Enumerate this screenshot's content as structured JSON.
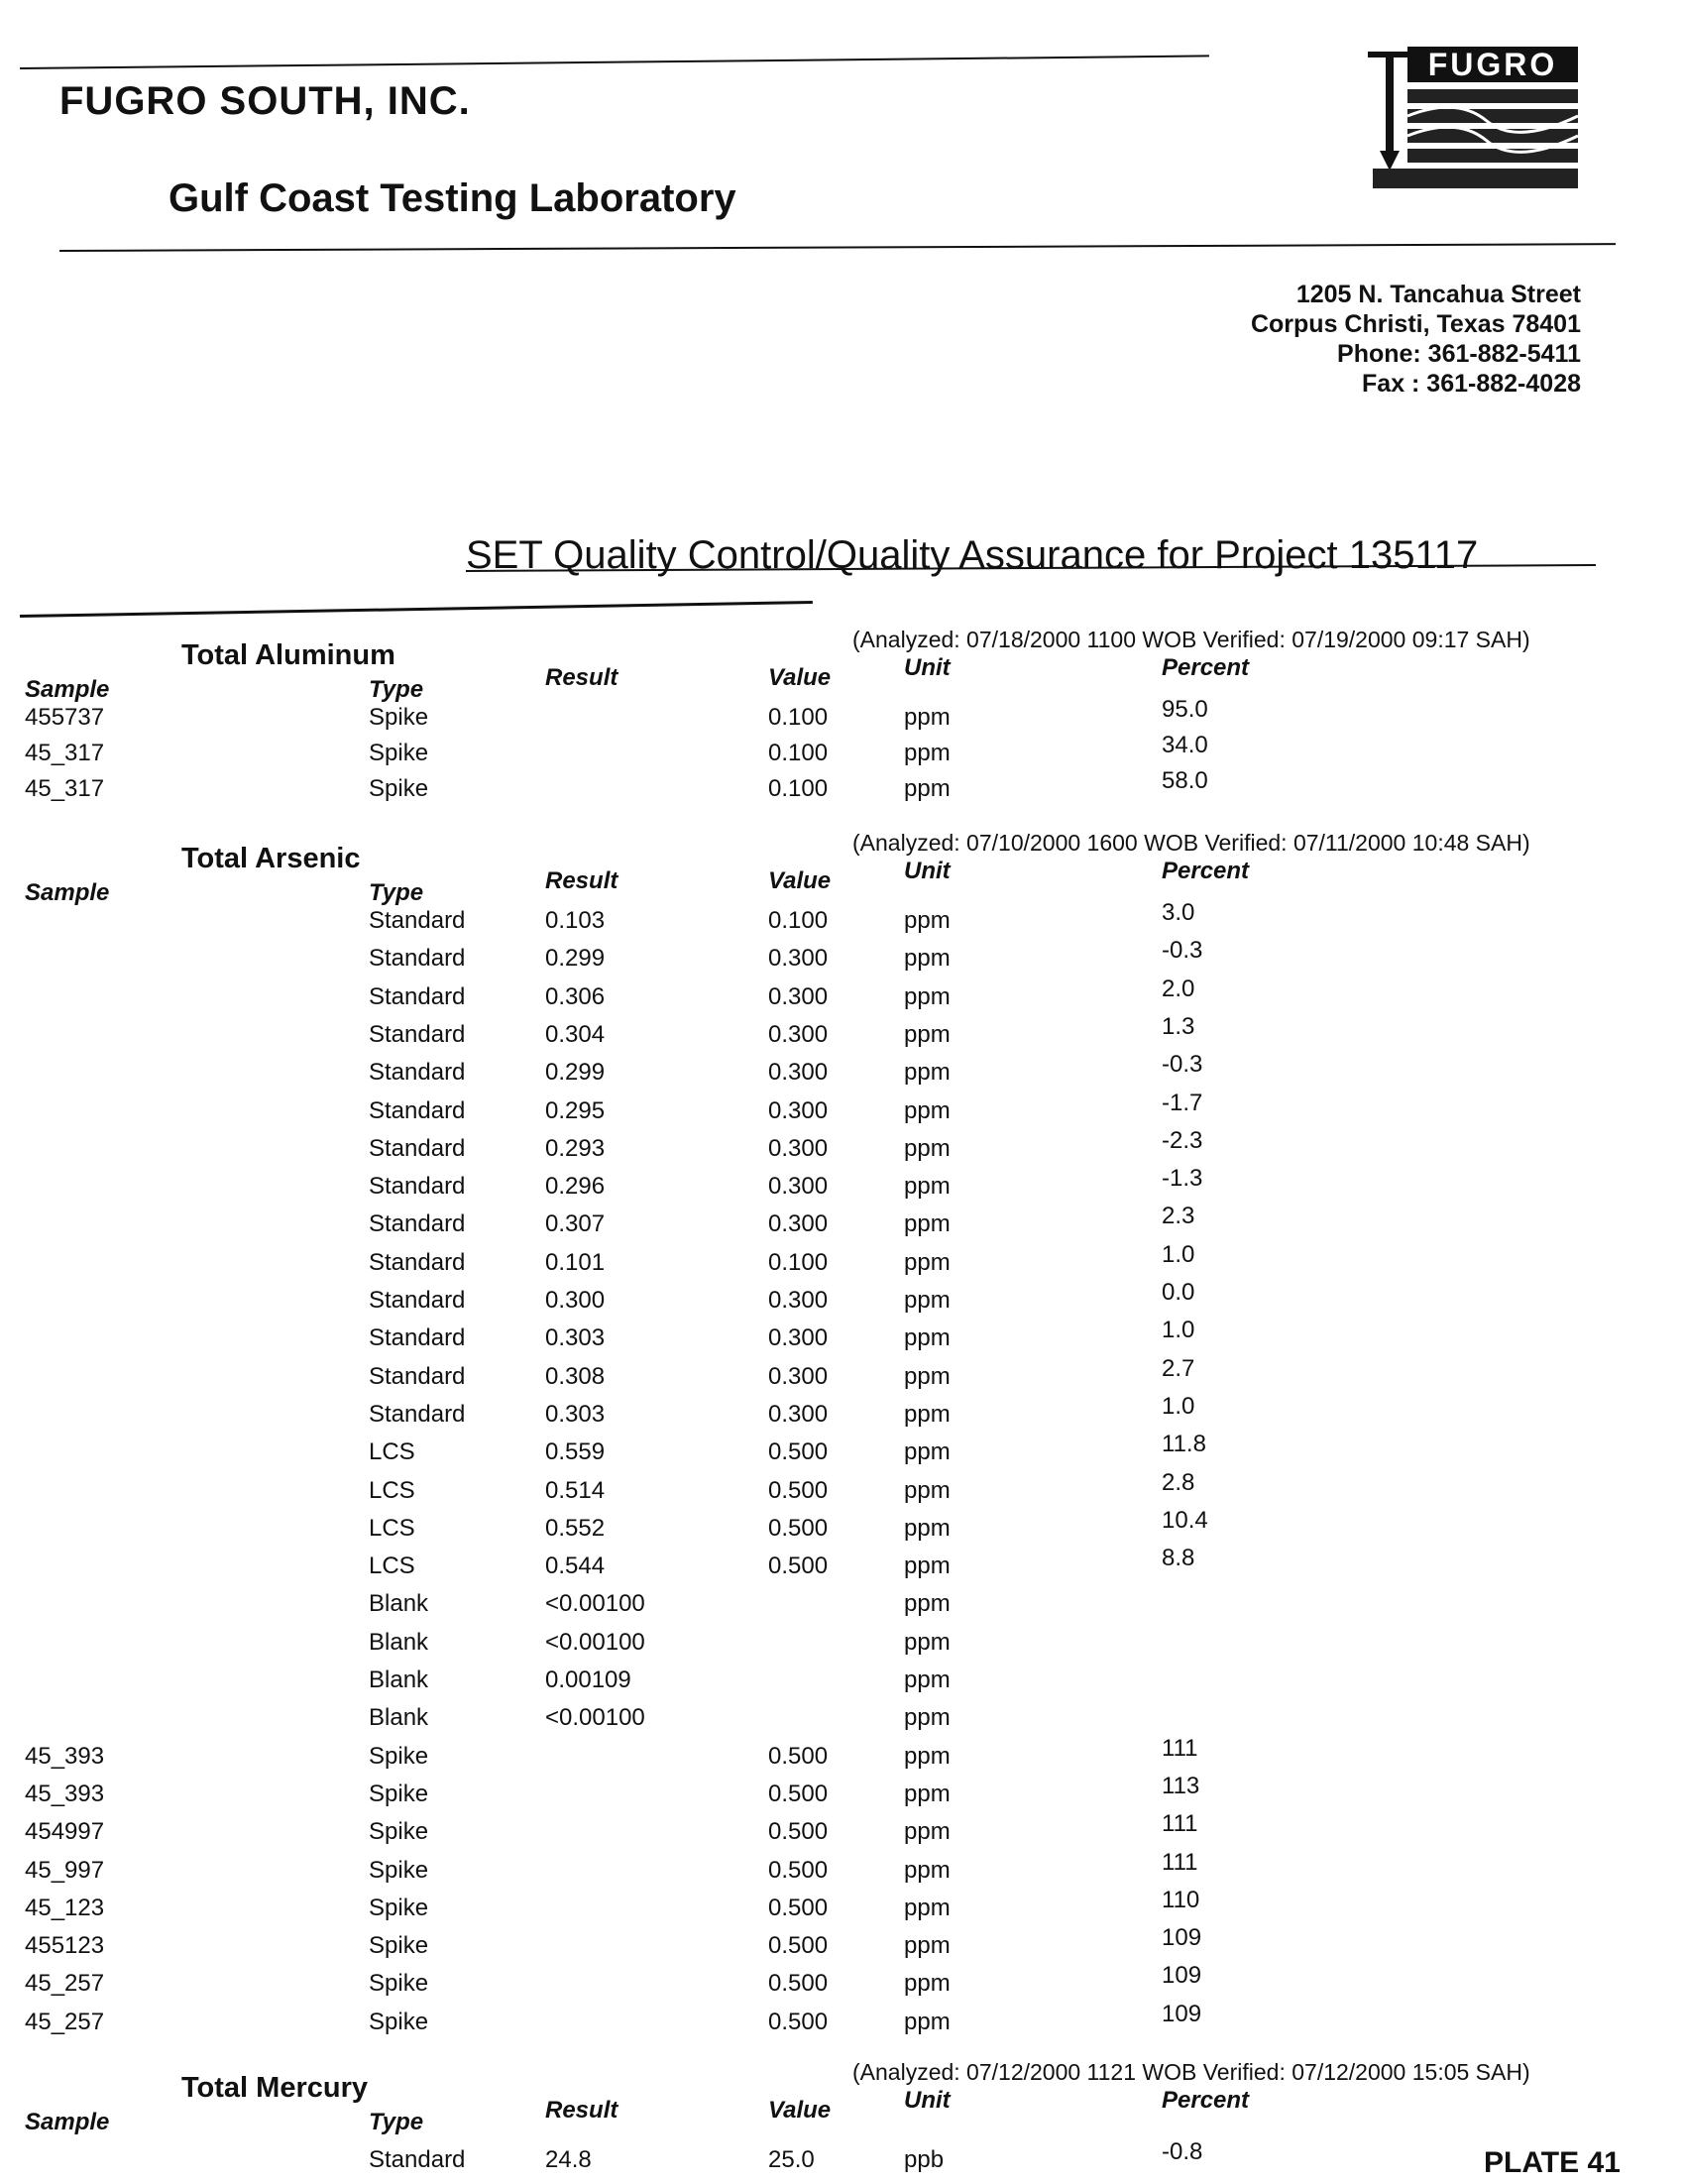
{
  "header": {
    "company": "FUGRO SOUTH, INC.",
    "laboratory": "Gulf Coast Testing Laboratory",
    "logo_text": "FUGRO",
    "address": [
      "1205 N. Tancahua Street",
      "Corpus  Christi, Texas 78401",
      "Phone: 361-882-5411",
      "Fax    : 361-882-4028"
    ]
  },
  "title": "SET Quality Control/Quality Assurance for Project 135117",
  "columns": {
    "sample": "Sample",
    "type": "Type",
    "result": "Result",
    "value": "Value",
    "unit": "Unit",
    "percent": "Percent"
  },
  "sections": [
    {
      "name": "Total Aluminum",
      "analyzed": "(Analyzed: 07/18/2000 1100  WOB  Verified:  07/19/2000 09:17 SAH)",
      "rows": [
        [
          "455737",
          "Spike",
          "",
          "0.100",
          "ppm",
          "95.0"
        ],
        [
          "45_317",
          "Spike",
          "",
          "0.100",
          "ppm",
          "34.0"
        ],
        [
          "45_317",
          "Spike",
          "",
          "0.100",
          "ppm",
          "58.0"
        ]
      ]
    },
    {
      "name": "Total Arsenic",
      "analyzed": "(Analyzed: 07/10/2000 1600  WOB  Verified:  07/11/2000 10:48 SAH)",
      "rows": [
        [
          "",
          "Standard",
          "0.103",
          "0.100",
          "ppm",
          "3.0"
        ],
        [
          "",
          "Standard",
          "0.299",
          "0.300",
          "ppm",
          "-0.3"
        ],
        [
          "",
          "Standard",
          "0.306",
          "0.300",
          "ppm",
          "2.0"
        ],
        [
          "",
          "Standard",
          "0.304",
          "0.300",
          "ppm",
          "1.3"
        ],
        [
          "",
          "Standard",
          "0.299",
          "0.300",
          "ppm",
          "-0.3"
        ],
        [
          "",
          "Standard",
          "0.295",
          "0.300",
          "ppm",
          "-1.7"
        ],
        [
          "",
          "Standard",
          "0.293",
          "0.300",
          "ppm",
          "-2.3"
        ],
        [
          "",
          "Standard",
          "0.296",
          "0.300",
          "ppm",
          "-1.3"
        ],
        [
          "",
          "Standard",
          "0.307",
          "0.300",
          "ppm",
          "2.3"
        ],
        [
          "",
          "Standard",
          "0.101",
          "0.100",
          "ppm",
          "1.0"
        ],
        [
          "",
          "Standard",
          "0.300",
          "0.300",
          "ppm",
          "0.0"
        ],
        [
          "",
          "Standard",
          "0.303",
          "0.300",
          "ppm",
          "1.0"
        ],
        [
          "",
          "Standard",
          "0.308",
          "0.300",
          "ppm",
          "2.7"
        ],
        [
          "",
          "Standard",
          "0.303",
          "0.300",
          "ppm",
          "1.0"
        ],
        [
          "",
          "LCS",
          "0.559",
          "0.500",
          "ppm",
          "11.8"
        ],
        [
          "",
          "LCS",
          "0.514",
          "0.500",
          "ppm",
          "2.8"
        ],
        [
          "",
          "LCS",
          "0.552",
          "0.500",
          "ppm",
          "10.4"
        ],
        [
          "",
          "LCS",
          "0.544",
          "0.500",
          "ppm",
          "8.8"
        ],
        [
          "",
          "Blank",
          "<0.00100",
          "",
          "ppm",
          ""
        ],
        [
          "",
          "Blank",
          "<0.00100",
          "",
          "ppm",
          ""
        ],
        [
          "",
          "Blank",
          "0.00109",
          "",
          "ppm",
          ""
        ],
        [
          "",
          "Blank",
          "<0.00100",
          "",
          "ppm",
          ""
        ],
        [
          "45_393",
          "Spike",
          "",
          "0.500",
          "ppm",
          "111"
        ],
        [
          "45_393",
          "Spike",
          "",
          "0.500",
          "ppm",
          "113"
        ],
        [
          "454997",
          "Spike",
          "",
          "0.500",
          "ppm",
          "111"
        ],
        [
          "45_997",
          "Spike",
          "",
          "0.500",
          "ppm",
          "111"
        ],
        [
          "45_123",
          "Spike",
          "",
          "0.500",
          "ppm",
          "110"
        ],
        [
          "455123",
          "Spike",
          "",
          "0.500",
          "ppm",
          "109"
        ],
        [
          "45_257",
          "Spike",
          "",
          "0.500",
          "ppm",
          "109"
        ],
        [
          "45_257",
          "Spike",
          "",
          "0.500",
          "ppm",
          "109"
        ]
      ]
    },
    {
      "name": "Total Mercury",
      "analyzed": "(Analyzed: 07/12/2000 1121  WOB  Verified:  07/12/2000 15:05 SAH)",
      "rows": [
        [
          "",
          "Standard",
          "24.8",
          "25.0",
          "ppb",
          "-0.8"
        ]
      ]
    }
  ],
  "plate": "PLATE 41"
}
